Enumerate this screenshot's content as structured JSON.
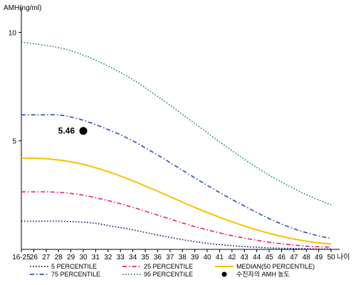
{
  "chart_data": {
    "type": "line",
    "ylabel": "AMH(ng/ml)",
    "xlabel": "나이",
    "ylim": [
      0,
      11
    ],
    "yticks": [
      "5",
      "10"
    ],
    "yticks_values": [
      5,
      10
    ],
    "grid": false,
    "x": [
      "16-25",
      "26",
      "27",
      "28",
      "29",
      "30",
      "31",
      "32",
      "33",
      "34",
      "35",
      "36",
      "37",
      "38",
      "39",
      "40",
      "41",
      "42",
      "43",
      "44",
      "45",
      "46",
      "47",
      "48",
      "49",
      "50"
    ],
    "series": [
      {
        "name": "5 PERCENTILE",
        "color": "#1a1a66",
        "dash": "dot",
        "values": [
          1.3,
          1.3,
          1.3,
          1.3,
          1.28,
          1.25,
          1.2,
          1.1,
          1.0,
          0.9,
          0.78,
          0.66,
          0.55,
          0.45,
          0.36,
          0.28,
          0.22,
          0.17,
          0.13,
          0.1,
          0.07,
          0.05,
          0.04,
          0.03,
          0.02,
          0.02
        ]
      },
      {
        "name": "25 PERCENTILE",
        "color": "#e0207a",
        "dash": "dashdot",
        "values": [
          2.65,
          2.65,
          2.65,
          2.63,
          2.58,
          2.5,
          2.38,
          2.25,
          2.1,
          1.94,
          1.76,
          1.58,
          1.4,
          1.22,
          1.05,
          0.9,
          0.76,
          0.63,
          0.52,
          0.42,
          0.33,
          0.26,
          0.2,
          0.15,
          0.12,
          0.1
        ]
      },
      {
        "name": "MEDIAN(50 PERCENTILE)",
        "color": "#f2c400",
        "dash": "solid",
        "values": [
          4.2,
          4.2,
          4.18,
          4.12,
          4.03,
          3.92,
          3.76,
          3.58,
          3.38,
          3.16,
          2.92,
          2.68,
          2.43,
          2.18,
          1.93,
          1.7,
          1.48,
          1.27,
          1.08,
          0.9,
          0.74,
          0.6,
          0.48,
          0.38,
          0.3,
          0.25
        ]
      },
      {
        "name": "75 PERCENTILE",
        "color": "#3050a8",
        "dash": "dashdot",
        "values": [
          6.2,
          6.2,
          6.2,
          6.2,
          6.1,
          5.95,
          5.75,
          5.52,
          5.28,
          5.0,
          4.68,
          4.35,
          4.0,
          3.65,
          3.3,
          2.95,
          2.62,
          2.3,
          2.0,
          1.7,
          1.42,
          1.17,
          0.95,
          0.77,
          0.62,
          0.5
        ]
      },
      {
        "name": "95 PERCENTILE",
        "color": "#2a8a55",
        "dash": "dot",
        "values": [
          9.55,
          9.48,
          9.4,
          9.3,
          9.15,
          8.95,
          8.72,
          8.45,
          8.15,
          7.82,
          7.45,
          7.05,
          6.65,
          6.22,
          5.8,
          5.38,
          4.95,
          4.55,
          4.15,
          3.78,
          3.42,
          3.1,
          2.8,
          2.52,
          2.28,
          2.05
        ]
      }
    ],
    "point": {
      "name": "수진자의 AMH 농도",
      "x": "30",
      "y": 5.46,
      "label": "5.46",
      "color": "#000000"
    },
    "legend_placement": "bottom"
  }
}
